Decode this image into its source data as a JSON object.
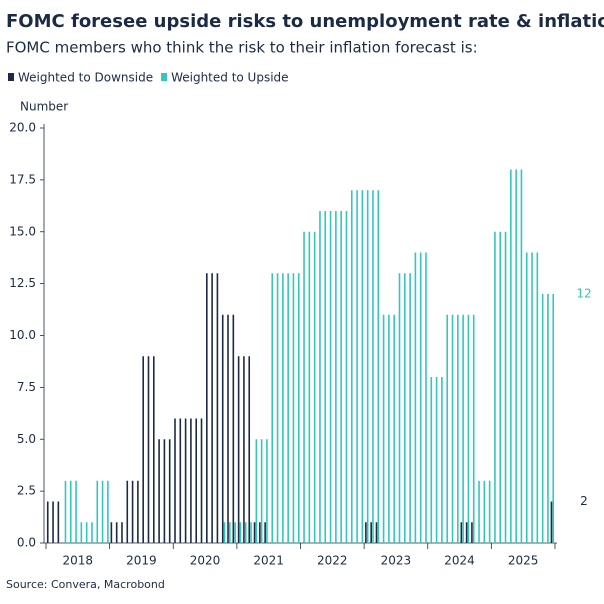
{
  "chart_data": {
    "type": "bar",
    "title": "FOMC foresee upside risks to unemployment rate & inflation",
    "subtitle": "FOMC members who think the risk to their inflation forecast is:",
    "y_label": "Number",
    "source": "Source: Convera, Macrobond",
    "categories": [
      null,
      null,
      null,
      null,
      null,
      null,
      "2018",
      null,
      null,
      null,
      null,
      null,
      null,
      null,
      null,
      null,
      null,
      null,
      "2019",
      null,
      null,
      null,
      null,
      null,
      null,
      null,
      null,
      null,
      null,
      null,
      "2020",
      null,
      null,
      null,
      null,
      null,
      null,
      null,
      null,
      null,
      null,
      null,
      "2021",
      null,
      null,
      null,
      null,
      null,
      null,
      null,
      null,
      null,
      null,
      null,
      "2022",
      null,
      null,
      null,
      null,
      null,
      null,
      null,
      null,
      null,
      null,
      null,
      "2023",
      null,
      null,
      null,
      null,
      null,
      null,
      null,
      null,
      null,
      null,
      null,
      "2024",
      null,
      null,
      null,
      null,
      null,
      null,
      null,
      null,
      null,
      null,
      null,
      "2025",
      null,
      null,
      null,
      null,
      null
    ],
    "series": [
      {
        "name": "Weighted to Downside",
        "color": "#1c2b45",
        "values": [
          2,
          2,
          2,
          0,
          0,
          0,
          0,
          0,
          0,
          0,
          0,
          0,
          1,
          1,
          1,
          3,
          3,
          3,
          9,
          9,
          9,
          5,
          5,
          5,
          6,
          6,
          6,
          6,
          6,
          6,
          13,
          13,
          13,
          11,
          11,
          11,
          9,
          9,
          9,
          1,
          1,
          1,
          0,
          0,
          0,
          0,
          0,
          0,
          0,
          0,
          0,
          0,
          0,
          0,
          0,
          0,
          0,
          0,
          0,
          0,
          1,
          1,
          1,
          0,
          0,
          0,
          0,
          0,
          0,
          0,
          0,
          0,
          0,
          0,
          0,
          0,
          0,
          0,
          1,
          1,
          1,
          0,
          0,
          0,
          0,
          0,
          0,
          0,
          0,
          0,
          0,
          0,
          0,
          0,
          0,
          2
        ]
      },
      {
        "name": "Weighted to Upside",
        "color": "#33c6bb",
        "values": [
          0,
          0,
          0,
          3,
          3,
          3,
          1,
          1,
          1,
          3,
          3,
          3,
          0,
          0,
          0,
          0,
          0,
          0,
          0,
          0,
          0,
          0,
          0,
          0,
          0,
          0,
          0,
          0,
          0,
          0,
          0,
          0,
          0,
          1,
          1,
          1,
          1,
          1,
          1,
          5,
          5,
          5,
          13,
          13,
          13,
          13,
          13,
          13,
          15,
          15,
          15,
          16,
          16,
          16,
          16,
          16,
          16,
          17,
          17,
          17,
          17,
          17,
          17,
          11,
          11,
          11,
          13,
          13,
          13,
          14,
          14,
          14,
          8,
          8,
          8,
          11,
          11,
          11,
          11,
          11,
          11,
          3,
          3,
          3,
          15,
          15,
          15,
          18,
          18,
          18,
          14,
          14,
          14,
          12,
          12,
          12
        ]
      }
    ],
    "ylim": [
      0,
      20
    ],
    "yticks": [
      {
        "value": 0,
        "label": "0.0"
      },
      {
        "value": 2.5,
        "label": "2.5"
      },
      {
        "value": 5,
        "label": "5.0"
      },
      {
        "value": 7.5,
        "label": "7.5"
      },
      {
        "value": 10,
        "label": "10.0"
      },
      {
        "value": 12.5,
        "label": "12.5"
      },
      {
        "value": 15,
        "label": "15.0"
      },
      {
        "value": 17.5,
        "label": "17.5"
      },
      {
        "value": 20,
        "label": "20.0"
      }
    ],
    "grid": false
  }
}
